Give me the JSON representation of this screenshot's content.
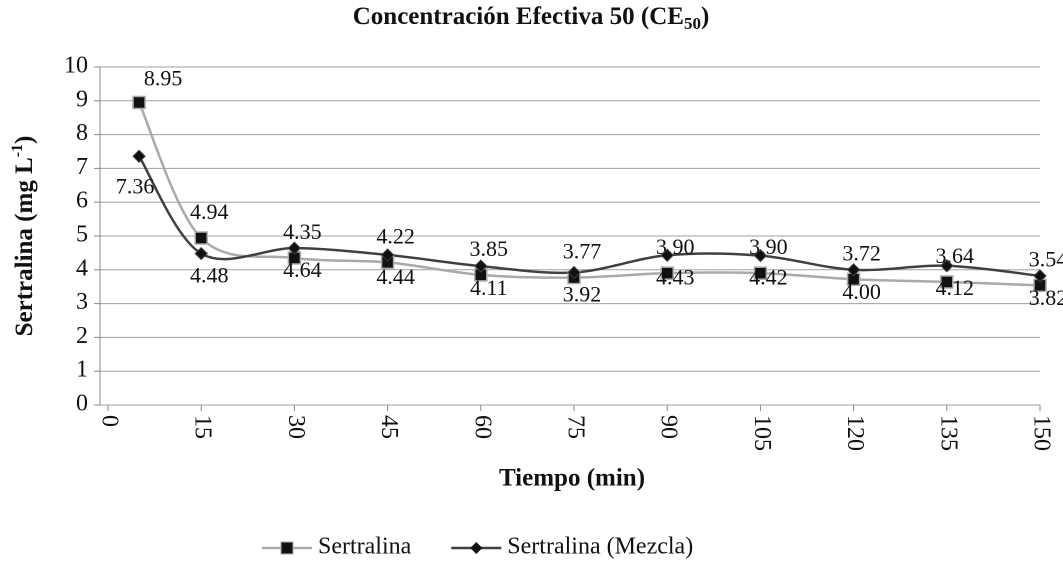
{
  "chart_data": {
    "type": "line",
    "title": [
      "Concentración Efectiva 50 (CE",
      "50",
      ")"
    ],
    "xlabel": "Tiempo (min)",
    "ylabel": [
      "Sertralina (mg L",
      "-1",
      ")"
    ],
    "x": [
      5,
      15,
      30,
      45,
      60,
      75,
      90,
      105,
      120,
      135,
      150
    ],
    "series": [
      {
        "name": "Sertralina",
        "color": "#aaaaaa",
        "marker": "square",
        "values": [
          8.95,
          4.94,
          4.35,
          4.22,
          3.85,
          3.77,
          3.9,
          3.9,
          3.72,
          3.64,
          3.54
        ],
        "value_labels": [
          "8.95",
          "4.94",
          "4.35",
          "4.22",
          "3.85",
          "3.77",
          "3.90",
          "3.90",
          "3.72",
          "3.64",
          "3.54"
        ]
      },
      {
        "name": "Sertralina (Mezcla)",
        "color": "#404040",
        "marker": "diamond",
        "values": [
          7.36,
          4.48,
          4.64,
          4.44,
          4.11,
          3.92,
          4.43,
          4.42,
          4.0,
          4.12,
          3.82
        ],
        "value_labels": [
          "7.36",
          "4.48",
          "4.64",
          "4.44",
          "4.11",
          "3.92",
          "4.43",
          "4.42",
          "4.00",
          "4.12",
          "3.82"
        ]
      }
    ],
    "xlim": [
      0,
      150
    ],
    "xticks": [
      0,
      15,
      30,
      45,
      60,
      75,
      90,
      105,
      120,
      135,
      150
    ],
    "ylim": [
      0,
      10
    ],
    "yticks": [
      0,
      1,
      2,
      3,
      4,
      5,
      6,
      7,
      8,
      9,
      10
    ],
    "grid": true,
    "legend": "bottom"
  }
}
